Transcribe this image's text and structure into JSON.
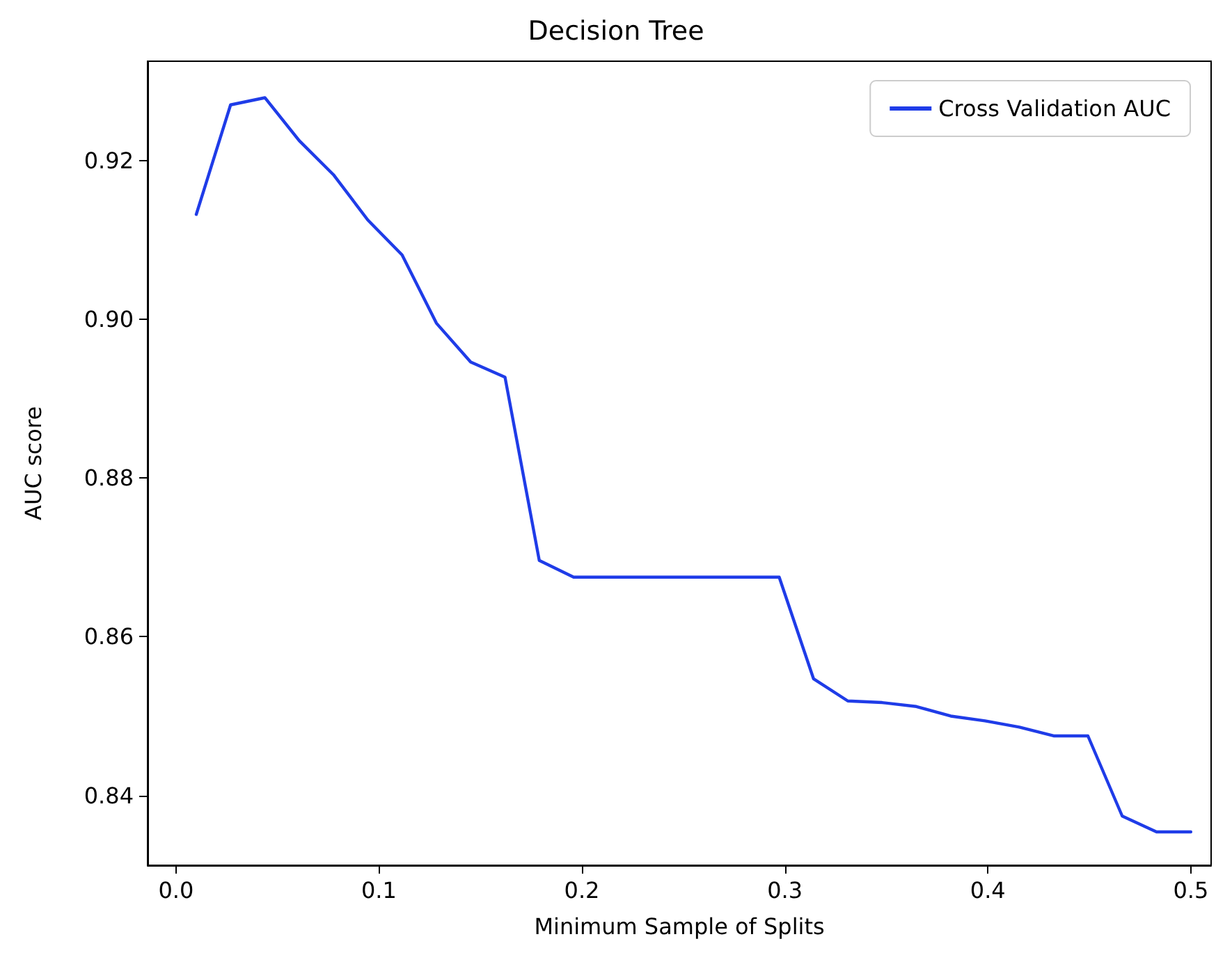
{
  "chart_data": {
    "type": "line",
    "title": "Decision Tree",
    "xlabel": "Minimum Sample of Splits",
    "ylabel": "AUC score",
    "xlim": [
      -0.014,
      0.51
    ],
    "ylim": [
      0.8312,
      0.9325
    ],
    "xticks": [
      {
        "value": 0,
        "label": "0.0"
      },
      {
        "value": 0.1,
        "label": "0.1"
      },
      {
        "value": 0.2,
        "label": "0.2"
      },
      {
        "value": 0.3,
        "label": "0.3"
      },
      {
        "value": 0.4,
        "label": "0.4"
      },
      {
        "value": 0.5,
        "label": "0.5"
      }
    ],
    "yticks": [
      {
        "value": 0.84,
        "label": "0.84"
      },
      {
        "value": 0.86,
        "label": "0.86"
      },
      {
        "value": 0.88,
        "label": "0.88"
      },
      {
        "value": 0.9,
        "label": "0.90"
      },
      {
        "value": 0.92,
        "label": "0.92"
      }
    ],
    "grid": false,
    "legend": "top right",
    "marker": "none",
    "line_style": "solid",
    "series": [
      {
        "name": "Cross Validation AUC",
        "color": "#1f3ce8",
        "x": [
          0.01,
          0.0269,
          0.0438,
          0.0607,
          0.0776,
          0.0945,
          0.1114,
          0.1283,
          0.1452,
          0.1621,
          0.179,
          0.1959,
          0.2128,
          0.2297,
          0.2466,
          0.2634,
          0.2803,
          0.2972,
          0.3141,
          0.331,
          0.3479,
          0.3648,
          0.3817,
          0.3986,
          0.4155,
          0.4324,
          0.4493,
          0.4662,
          0.4831,
          0.5
        ],
        "values": [
          0.9132,
          0.927,
          0.9279,
          0.9225,
          0.9182,
          0.9125,
          0.9081,
          0.8995,
          0.8946,
          0.8927,
          0.8696,
          0.8675,
          0.8675,
          0.8675,
          0.8675,
          0.8675,
          0.8675,
          0.8675,
          0.8547,
          0.8519,
          0.8517,
          0.8512,
          0.85,
          0.8494,
          0.8486,
          0.8475,
          0.8475,
          0.8374,
          0.8354,
          0.8354
        ]
      }
    ]
  }
}
